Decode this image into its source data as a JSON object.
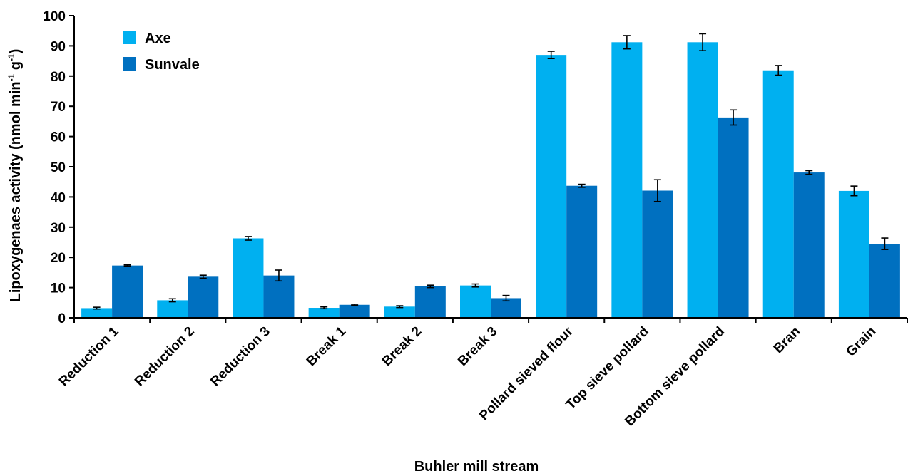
{
  "chart_data": {
    "type": "bar",
    "title": "",
    "xlabel": "Buhler mill stream",
    "ylabel": "Lipoxygenaes activity (nmol min-1 g-1)",
    "ylabel_parts": [
      "Lipoxygenaes activity (nmol min",
      "-1",
      " g",
      "-1",
      ")"
    ],
    "ylim": [
      0,
      100
    ],
    "yticks": [
      0,
      10,
      20,
      30,
      40,
      50,
      60,
      70,
      80,
      90,
      100
    ],
    "grid": false,
    "legend_position": "top-left",
    "categories": [
      "Reduction 1",
      "Reduction 2",
      "Reduction 3",
      "Break 1",
      "Break 2",
      "Break 3",
      "Pollard sieved flour",
      "Top sieve pollard",
      "Bottom sieve pollard",
      "Bran",
      "Grain"
    ],
    "series": [
      {
        "name": "Axe",
        "color": "#00B0F0",
        "values": [
          3.2,
          5.8,
          26.3,
          3.3,
          3.7,
          10.7,
          87.0,
          91.2,
          91.2,
          81.9,
          42.0
        ],
        "errors": [
          0.3,
          0.5,
          0.6,
          0.3,
          0.3,
          0.5,
          1.2,
          2.2,
          2.8,
          1.6,
          1.6
        ]
      },
      {
        "name": "Sunvale",
        "color": "#0070C0",
        "values": [
          17.3,
          13.6,
          14.0,
          4.3,
          10.4,
          6.5,
          43.7,
          42.1,
          66.3,
          48.1,
          24.5
        ],
        "errors": [
          0.2,
          0.5,
          1.8,
          0.2,
          0.4,
          0.9,
          0.5,
          3.6,
          2.5,
          0.6,
          1.9
        ]
      }
    ]
  }
}
